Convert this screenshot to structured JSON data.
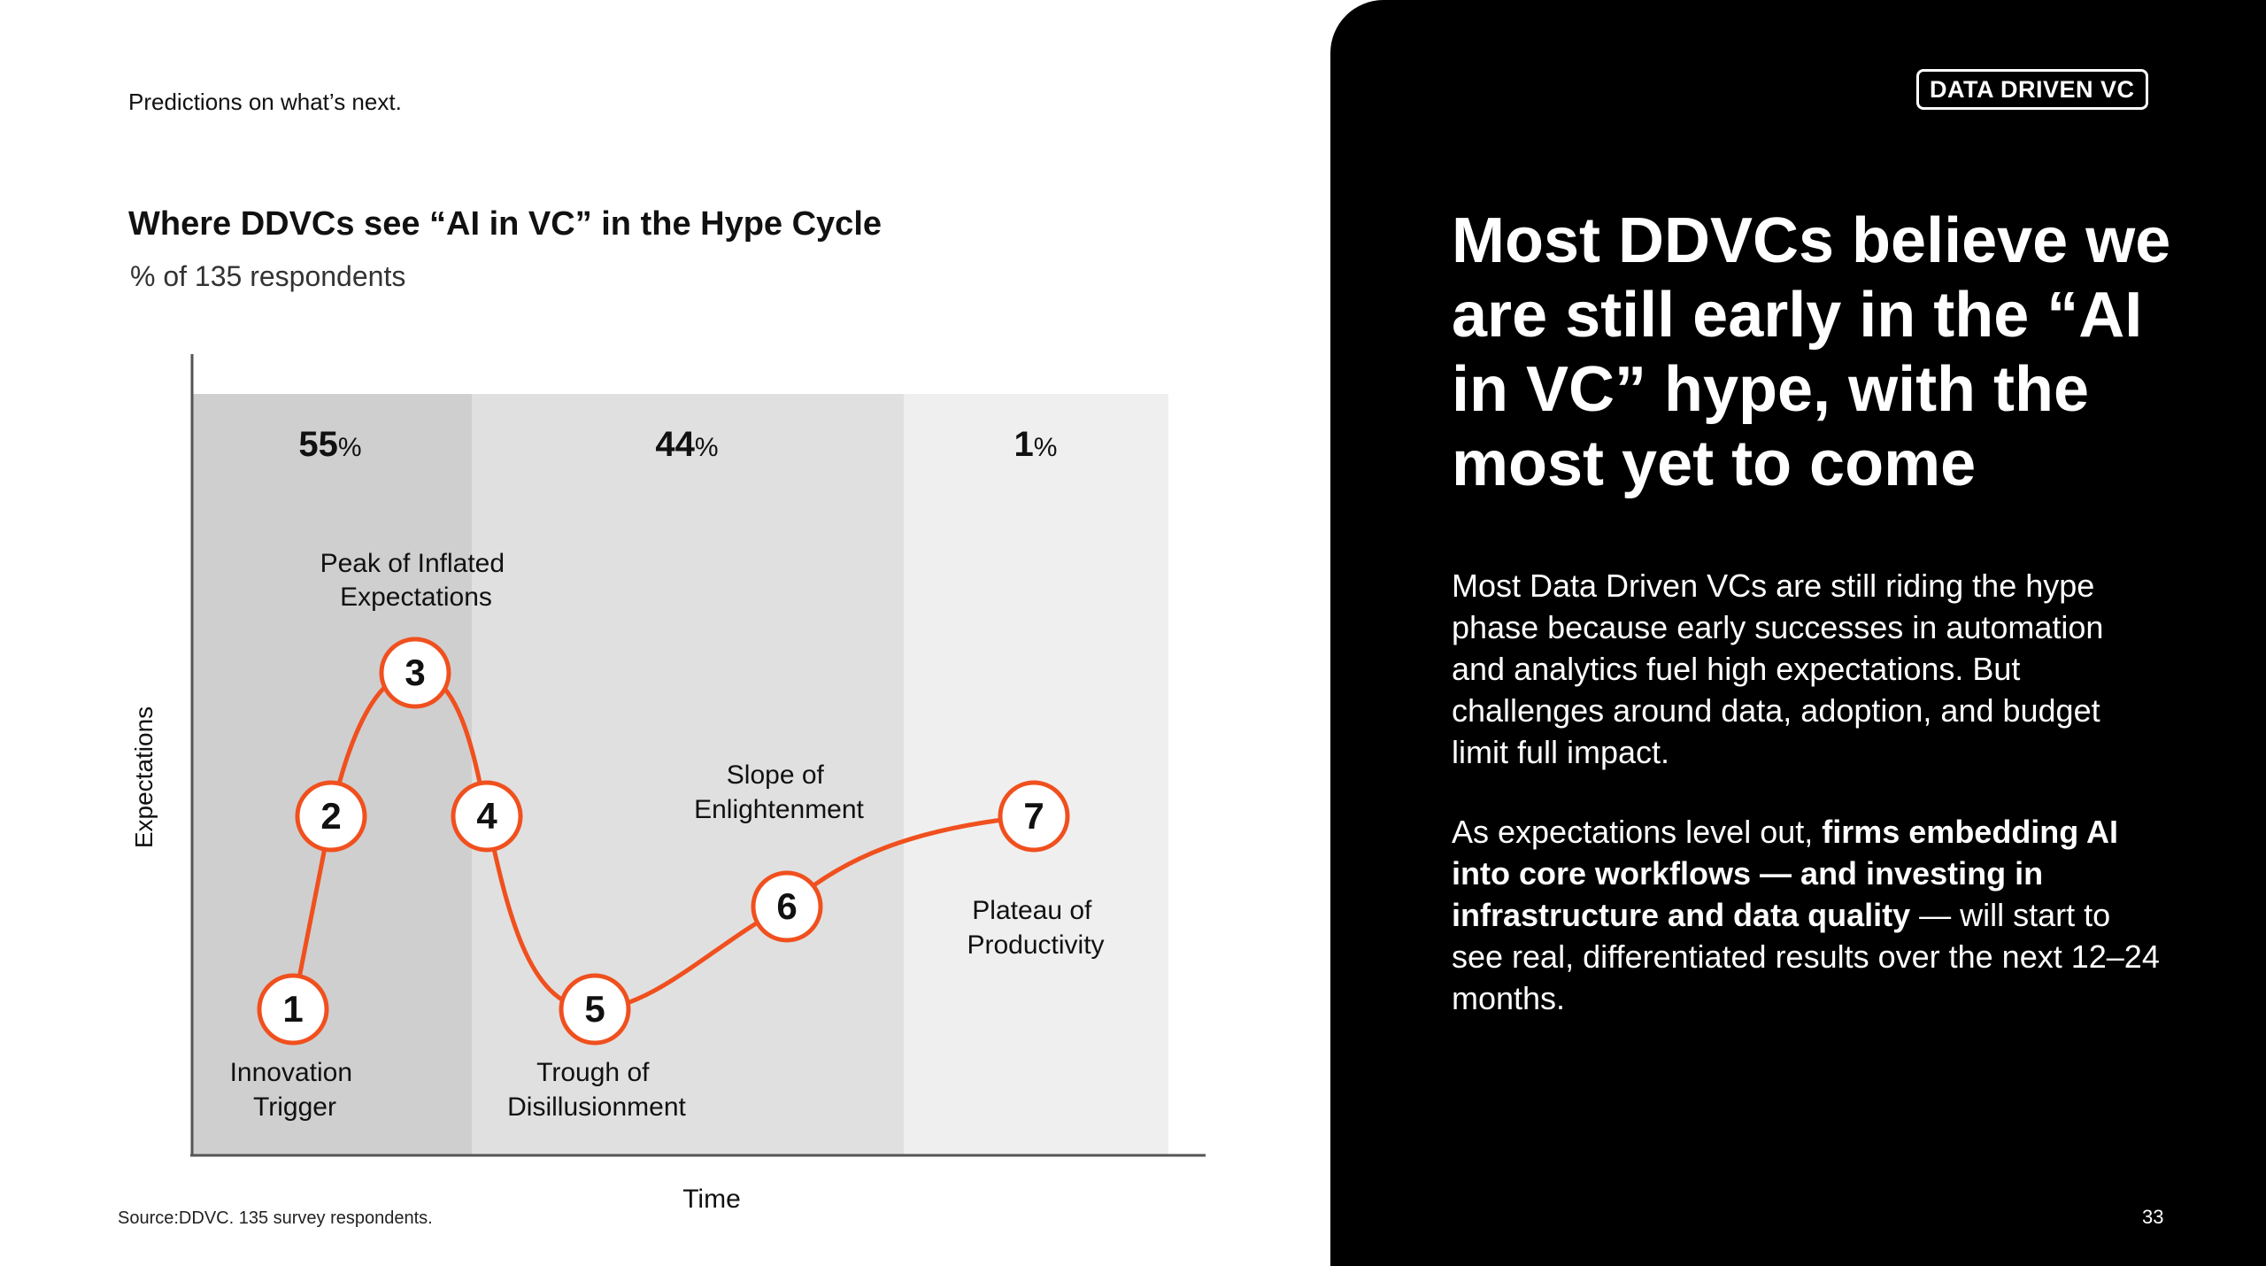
{
  "slide": {
    "eyebrow": "Predictions on what’s next.",
    "source": "Source:DDVC. 135 survey respondents.",
    "page_number": "33"
  },
  "chart_data": {
    "type": "diagram",
    "title": "Where DDVCs see “AI in VC” in the Hype Cycle",
    "subtitle": "% of 135 respondents",
    "xlabel": "Time",
    "ylabel": "Expectations",
    "bands": [
      {
        "value": 55,
        "label": "55",
        "unit": "%",
        "color": "#cfcfcf"
      },
      {
        "value": 44,
        "label": "44",
        "unit": "%",
        "color": "#e0e0e0"
      },
      {
        "value": 1,
        "label": "1",
        "unit": "%",
        "color": "#efefef"
      }
    ],
    "curve_color": "#f0501e",
    "stages": [
      {
        "number": "1",
        "name_line1": "Innovation",
        "name_line2": "Trigger"
      },
      {
        "number": "2",
        "name_line1": "",
        "name_line2": ""
      },
      {
        "number": "3",
        "name_line1": "Peak of Inflated",
        "name_line2": "Expectations"
      },
      {
        "number": "4",
        "name_line1": "",
        "name_line2": ""
      },
      {
        "number": "5",
        "name_line1": "Trough of",
        "name_line2": "Disillusionment"
      },
      {
        "number": "6",
        "name_line1": "Slope of",
        "name_line2": "Enlightenment"
      },
      {
        "number": "7",
        "name_line1": "Plateau of",
        "name_line2": "Productivity"
      }
    ]
  },
  "panel": {
    "brand": "DATA DRIVEN VC",
    "headline": "Most DDVCs believe we are still early in the “AI in VC” hype, with the most yet to come",
    "paragraph1": "Most Data Driven VCs are still riding the hype phase because early successes in automation and analytics fuel high expectations. But challenges around data, adoption, and budget limit full impact.",
    "paragraph2_intro": "As expectations level out, ",
    "paragraph2_bold": "firms embedding AI into core workflows —  and investing in infrastructure and data quality",
    "paragraph2_rest": " — will start to see real, differentiated results over the next 12–24 months."
  }
}
